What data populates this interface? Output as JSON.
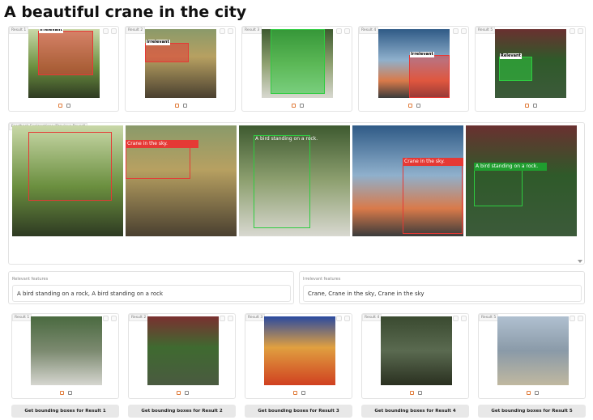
{
  "header": {
    "title": "A beautiful crane in the city"
  },
  "top_results": [
    {
      "label": "Result 1",
      "tag": "Irrelevant"
    },
    {
      "label": "Result 2",
      "tag": "Irrelevant"
    },
    {
      "label": "Result 3"
    },
    {
      "label": "Result 4",
      "tag": "Irrelevant"
    },
    {
      "label": "Result 5",
      "tag": "Relevant"
    }
  ],
  "feedback": {
    "label": "Feedback Explanations (Previous Round)",
    "captions": [
      null,
      "Crane in the sky.",
      "A bird standing on a rock.",
      "Crane in the sky.",
      "A bird standing on a rock."
    ]
  },
  "relevant": {
    "label": "Relevant features",
    "value": "A bird standing on a rock, A bird standing on a rock"
  },
  "irrelevant": {
    "label": "Irrelevant features",
    "value": "Crane, Crane in the sky, Crane in the sky"
  },
  "bottom_results": [
    {
      "label": "Result 1",
      "button": "Get bounding boxes for Result 1"
    },
    {
      "label": "Result 2",
      "button": "Get bounding boxes for Result 2"
    },
    {
      "label": "Result 3",
      "button": "Get bounding boxes for Result 3"
    },
    {
      "label": "Result 4",
      "button": "Get bounding boxes for Result 4"
    },
    {
      "label": "Result 5",
      "button": "Get bounding boxes for Result 5"
    }
  ]
}
